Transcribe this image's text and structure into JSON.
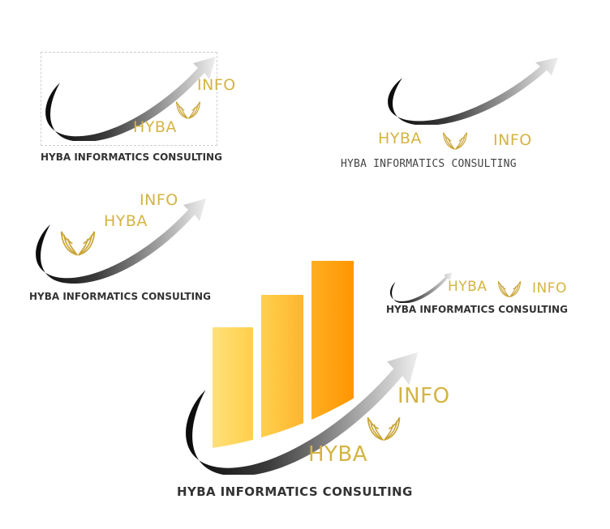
{
  "brand": {
    "colors": {
      "gold": "#d4b441",
      "dark": "#1a1a1a",
      "text": "#333333",
      "bar_light": "#ffd666",
      "bar_dark": "#ff9800"
    },
    "icons": [
      "swoosh-arrow-icon",
      "wings-icon"
    ]
  },
  "logos": [
    {
      "hyba": "HYBA",
      "info": "INFO",
      "company": "HYBA INFORMATICS CONSULTING"
    },
    {
      "hyba": "HYBA",
      "info": "INFO",
      "company": "HYBA INFORMATICS CONSULTING"
    },
    {
      "hyba": "HYBA",
      "info": "INFO",
      "company": "HYBA INFORMATICS CONSULTING"
    },
    {
      "hyba": "HYBA",
      "info": "INFO",
      "company": "HYBA INFORMATICS CONSULTING"
    },
    {
      "hyba": "HYBA",
      "info": "INFO",
      "company": "HYBA INFORMATICS CONSULTING"
    }
  ]
}
